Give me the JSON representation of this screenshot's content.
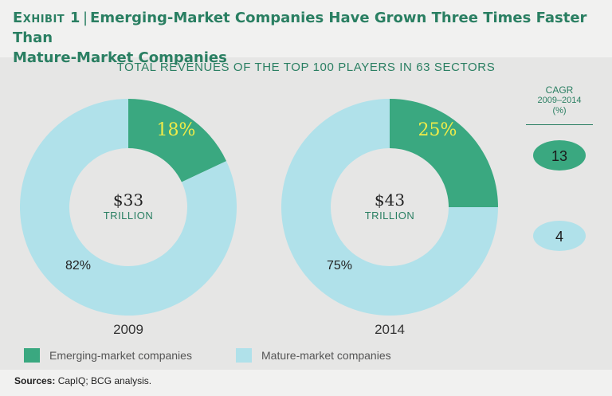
{
  "exhibit": {
    "label": "Exhibit 1",
    "title_line1": "Emerging-Market Companies Have Grown Three Times Faster Than",
    "title_line2": "Mature-Market Companies"
  },
  "chart_subtitle": "TOTAL REVENUES OF THE TOP 100 PLAYERS IN 63 SECTORS",
  "cagr": {
    "header_line1": "CAGR",
    "header_line2": "2009–2014",
    "header_line3": "(%)",
    "emerging": "13",
    "mature": "4"
  },
  "legend": {
    "emerging": "Emerging-market companies",
    "mature": "Mature-market companies"
  },
  "source": {
    "label": "Sources:",
    "text": " CapIQ; BCG analysis."
  },
  "colors": {
    "emerging": "#3aa880",
    "mature": "#b0e1ea",
    "accent": "#2a7f62",
    "highlight_text": "#f0ec48"
  },
  "chart_data": {
    "type": "pie",
    "variant": "donut",
    "title": "TOTAL REVENUES OF THE TOP 100 PLAYERS IN 63 SECTORS",
    "categories": [
      "Emerging-market companies",
      "Mature-market companies"
    ],
    "charts": [
      {
        "year": "2009",
        "center_value": "$33",
        "center_unit": "TRILLION",
        "slices": [
          {
            "name": "Emerging-market companies",
            "value": 18,
            "label": "18%"
          },
          {
            "name": "Mature-market companies",
            "value": 82,
            "label": "82%"
          }
        ]
      },
      {
        "year": "2014",
        "center_value": "$43",
        "center_unit": "TRILLION",
        "slices": [
          {
            "name": "Emerging-market companies",
            "value": 25,
            "label": "25%"
          },
          {
            "name": "Mature-market companies",
            "value": 75,
            "label": "75%"
          }
        ]
      }
    ]
  }
}
